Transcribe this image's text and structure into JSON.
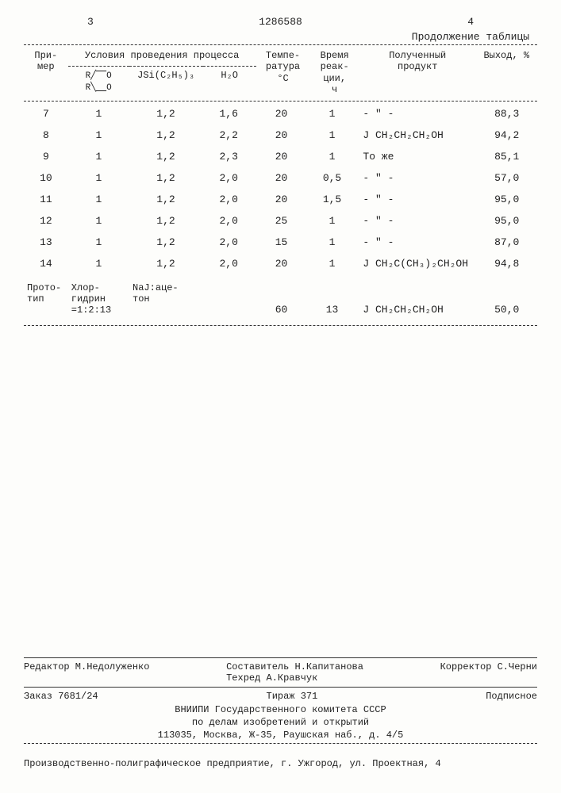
{
  "page": {
    "left_num": "3",
    "patent": "1286588",
    "right_num": "4",
    "continuation": "Продолжение таблицы"
  },
  "headers": {
    "example": "При-\nмер",
    "conditions": "Условия проведения процесса",
    "struct": "R⌈O\nR⌊O",
    "jsi": "JSi(C₂H₅)₃",
    "h2o": "H₂O",
    "temp": "Темпе-\nратура\n°C",
    "time": "Время\nреак-\nции,\nч",
    "product": "Полученный\nпродукт",
    "yield": "Выход, %"
  },
  "rows": [
    {
      "n": "7",
      "c1": "1",
      "c2": "1,2",
      "c3": "1,6",
      "t": "20",
      "tm": "1",
      "p": "- \" -",
      "y": "88,3"
    },
    {
      "n": "8",
      "c1": "1",
      "c2": "1,2",
      "c3": "2,2",
      "t": "20",
      "tm": "1",
      "p": "J CH₂CH₂CH₂OH",
      "y": "94,2"
    },
    {
      "n": "9",
      "c1": "1",
      "c2": "1,2",
      "c3": "2,3",
      "t": "20",
      "tm": "1",
      "p": "То же",
      "y": "85,1"
    },
    {
      "n": "10",
      "c1": "1",
      "c2": "1,2",
      "c3": "2,0",
      "t": "20",
      "tm": "0,5",
      "p": "- \" -",
      "y": "57,0"
    },
    {
      "n": "11",
      "c1": "1",
      "c2": "1,2",
      "c3": "2,0",
      "t": "20",
      "tm": "1,5",
      "p": "- \" -",
      "y": "95,0"
    },
    {
      "n": "12",
      "c1": "1",
      "c2": "1,2",
      "c3": "2,0",
      "t": "25",
      "tm": "1",
      "p": "- \" -",
      "y": "95,0"
    },
    {
      "n": "13",
      "c1": "1",
      "c2": "1,2",
      "c3": "2,0",
      "t": "15",
      "tm": "1",
      "p": "- \" -",
      "y": "87,0"
    },
    {
      "n": "14",
      "c1": "1",
      "c2": "1,2",
      "c3": "2,0",
      "t": "20",
      "tm": "1",
      "p": "J CH₂C(CH₃)₂CH₂OH",
      "y": "94,8"
    }
  ],
  "prototype": {
    "label": "Прото-\nтип",
    "c1": "Хлор-\nгидрин\n=1:2:13",
    "c2": "NaJ:аце-\nтон",
    "c3": "",
    "t": "60",
    "tm": "13",
    "p": "J CH₂CH₂CH₂OH",
    "y": "50,0"
  },
  "footer": {
    "editor": "Редактор М.Недолуженко",
    "compiler": "Составитель Н.Капитанова",
    "techred": "Техред А.Кравчук",
    "corrector": "Корректор С.Черни",
    "order": "Заказ 7681/24",
    "tirage": "Тираж 371",
    "subscription": "Подписное",
    "org1": "ВНИИПИ Государственного комитета СССР",
    "org2": "по делам изобретений и открытий",
    "addr": "113035, Москва, Ж-35, Раушская наб., д. 4/5",
    "print": "Производственно-полиграфическое предприятие, г. Ужгород, ул. Проектная, 4"
  }
}
